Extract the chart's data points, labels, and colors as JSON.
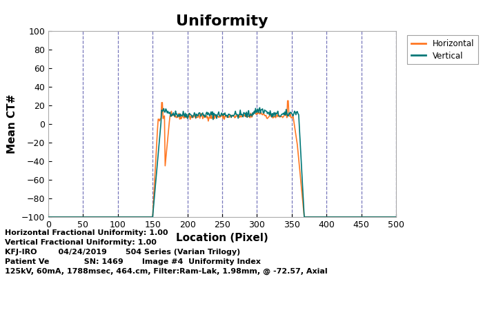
{
  "title": "Uniformity",
  "xlabel": "Location (Pixel)",
  "ylabel": "Mean CT#",
  "xlim": [
    0,
    500
  ],
  "ylim": [
    -100,
    100
  ],
  "xticks": [
    0,
    50,
    100,
    150,
    200,
    250,
    300,
    350,
    400,
    450,
    500
  ],
  "yticks": [
    -100,
    -80,
    -60,
    -40,
    -20,
    0,
    20,
    40,
    60,
    80,
    100
  ],
  "vlines": [
    50,
    100,
    150,
    200,
    250,
    300,
    350,
    400,
    450,
    500
  ],
  "vline_color": "#5555aa",
  "vline_style": "--",
  "horiz_color": "#FF7722",
  "vert_color": "#007777",
  "legend_labels": [
    "Horizontal",
    "Vertical"
  ],
  "annotation_lines": [
    "Horizontal Fractional Uniformity: 1.00",
    "Vertical Fractional Uniformity: 1.00",
    "KFJ-IRO        04/24/2019       504 Series (Varian Trilogy)",
    "Patient Ve             SN: 1469       Image #4  Uniformity Index",
    "125kV, 60mA, 1788msec, 464.cm, Filter:Ram-Lak, 1.98mm, @ -72.57, Axial"
  ],
  "title_fontsize": 16,
  "title_fontweight": "bold",
  "axis_label_fontsize": 11,
  "axis_label_fontweight": "bold",
  "tick_fontsize": 9,
  "annotation_fontsize": 8,
  "background_color": "#ffffff",
  "plot_bg_color": "#ffffff"
}
